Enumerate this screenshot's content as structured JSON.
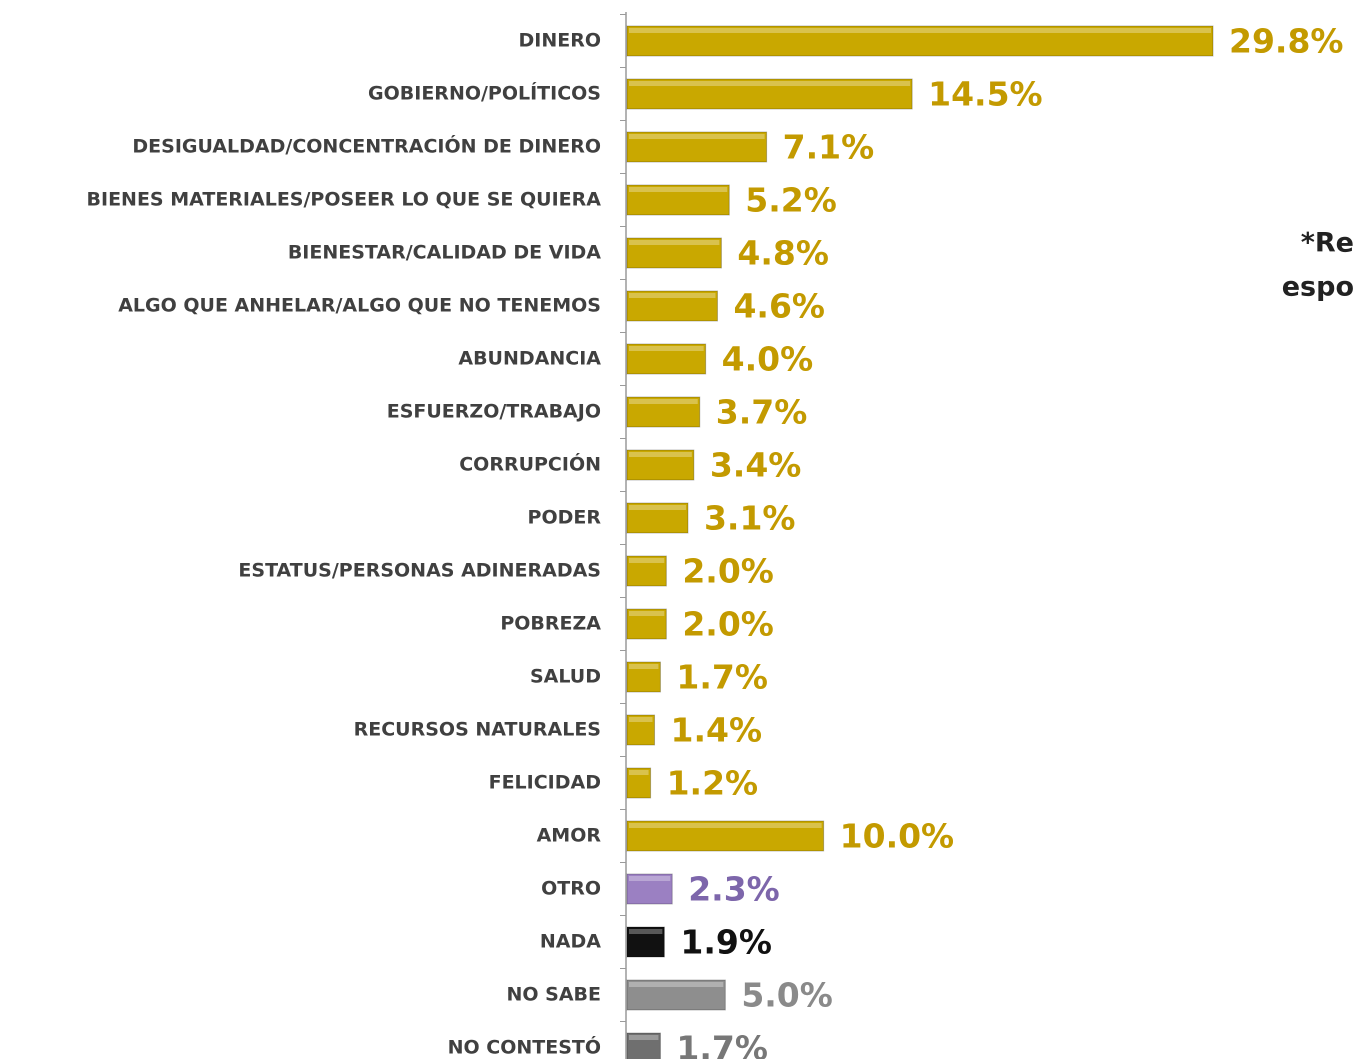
{
  "chart_data": {
    "type": "hbar",
    "categories": [
      "DINERO",
      "GOBIERNO/POLÍTICOS",
      "DESIGUALDAD/CONCENTRACIÓN DE DINERO",
      "BIENES MATERIALES/POSEER LO QUE SE QUIERA",
      "BIENESTAR/CALIDAD DE VIDA",
      "ALGO QUE ANHELAR/ALGO QUE NO TENEMOS",
      "ABUNDANCIA",
      "ESFUERZO/TRABAJO",
      "CORRUPCIÓN",
      "PODER",
      "ESTATUS/PERSONAS ADINERADAS",
      "POBREZA",
      "SALUD",
      "RECURSOS NATURALES",
      "FELICIDAD",
      "AMOR",
      "OTRO",
      "NADA",
      "NO SABE",
      "NO CONTESTÓ"
    ],
    "values": [
      29.8,
      14.5,
      7.1,
      5.2,
      4.8,
      4.6,
      4.0,
      3.7,
      3.4,
      3.1,
      2.0,
      2.0,
      1.7,
      1.4,
      1.2,
      10.0,
      2.3,
      1.9,
      5.0,
      1.7
    ],
    "value_labels": [
      "29.8%",
      "14.5%",
      "7.1%",
      "5.2%",
      "4.8%",
      "4.6%",
      "4.0%",
      "3.7%",
      "3.4%",
      "3.1%",
      "2.0%",
      "2.0%",
      "1.7%",
      "1.4%",
      "1.2%",
      "10.0%",
      "2.3%",
      "1.9%",
      "5.0%",
      "1.7%"
    ],
    "colors": [
      "#c9a800",
      "#c9a800",
      "#c9a800",
      "#c9a800",
      "#c9a800",
      "#c9a800",
      "#c9a800",
      "#c9a800",
      "#c9a800",
      "#c9a800",
      "#c9a800",
      "#c9a800",
      "#c9a800",
      "#c9a800",
      "#c9a800",
      "#c9a800",
      "#9b80c2",
      "#111111",
      "#8e8e8e",
      "#6f6f6f"
    ],
    "label_colors": [
      "#c39a00",
      "#c39a00",
      "#c39a00",
      "#c39a00",
      "#c39a00",
      "#c39a00",
      "#c39a00",
      "#c39a00",
      "#c39a00",
      "#c39a00",
      "#c39a00",
      "#c39a00",
      "#c39a00",
      "#c39a00",
      "#c39a00",
      "#c39a00",
      "#7d66ab",
      "#111111",
      "#8a8a8a",
      "#777777"
    ],
    "annotations": [
      "*Re",
      "espo"
    ]
  }
}
